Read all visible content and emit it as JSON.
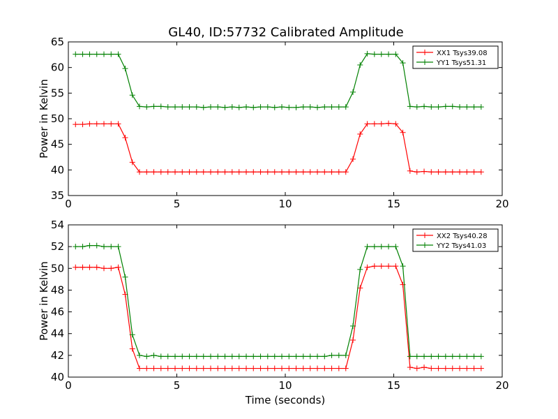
{
  "title": "GL40, ID:57732 Calibrated Amplitude",
  "colors": {
    "xx": "#ff0000",
    "yy": "#008000",
    "axis": "#000000",
    "background": "#ffffff"
  },
  "chart_data": [
    {
      "type": "line",
      "title": "GL40, ID:57732 Calibrated Amplitude",
      "xlabel": "",
      "ylabel": "Power in Kelvin",
      "xlim": [
        0,
        20
      ],
      "ylim": [
        35,
        65
      ],
      "xticks": [
        0,
        5,
        10,
        15,
        20
      ],
      "yticks": [
        35,
        40,
        45,
        50,
        55,
        60,
        65
      ],
      "grid": false,
      "legend": "top-right",
      "marker": "+",
      "x": [
        0.33,
        0.66,
        0.98,
        1.31,
        1.64,
        1.97,
        2.3,
        2.62,
        2.95,
        3.28,
        3.61,
        3.94,
        4.27,
        4.59,
        4.92,
        5.25,
        5.58,
        5.91,
        6.23,
        6.56,
        6.89,
        7.22,
        7.55,
        7.87,
        8.2,
        8.53,
        8.86,
        9.19,
        9.51,
        9.84,
        10.17,
        10.5,
        10.83,
        11.15,
        11.48,
        11.81,
        12.14,
        12.47,
        12.79,
        13.12,
        13.45,
        13.78,
        14.11,
        14.43,
        14.76,
        15.09,
        15.42,
        15.75,
        16.07,
        16.4,
        16.73,
        17.06,
        17.39,
        17.71,
        18.04,
        18.37,
        18.7,
        19.03
      ],
      "series": [
        {
          "name": "XX1 Tsys39.08",
          "color": "#ff0000",
          "values": [
            48.9,
            48.9,
            49.0,
            49.0,
            49.0,
            49.0,
            49.0,
            46.3,
            41.5,
            39.6,
            39.6,
            39.6,
            39.6,
            39.6,
            39.6,
            39.6,
            39.6,
            39.6,
            39.6,
            39.6,
            39.6,
            39.6,
            39.6,
            39.6,
            39.6,
            39.6,
            39.6,
            39.6,
            39.6,
            39.6,
            39.6,
            39.6,
            39.6,
            39.6,
            39.6,
            39.6,
            39.6,
            39.6,
            39.6,
            42.1,
            47.0,
            49.0,
            49.0,
            49.0,
            49.1,
            49.0,
            47.3,
            39.8,
            39.6,
            39.7,
            39.6,
            39.6,
            39.6,
            39.6,
            39.6,
            39.6,
            39.6,
            39.6
          ]
        },
        {
          "name": "YY1 Tsys51.31",
          "color": "#008000",
          "values": [
            62.6,
            62.6,
            62.6,
            62.6,
            62.6,
            62.6,
            62.6,
            59.8,
            54.6,
            52.4,
            52.3,
            52.4,
            52.4,
            52.3,
            52.3,
            52.3,
            52.3,
            52.3,
            52.2,
            52.3,
            52.3,
            52.2,
            52.3,
            52.2,
            52.3,
            52.2,
            52.3,
            52.3,
            52.2,
            52.3,
            52.2,
            52.2,
            52.3,
            52.3,
            52.2,
            52.3,
            52.3,
            52.3,
            52.3,
            55.2,
            60.5,
            62.7,
            62.6,
            62.6,
            62.6,
            62.6,
            60.9,
            52.4,
            52.3,
            52.4,
            52.3,
            52.3,
            52.4,
            52.4,
            52.3,
            52.3,
            52.3,
            52.3
          ]
        }
      ]
    },
    {
      "type": "line",
      "title": "",
      "xlabel": "Time (seconds)",
      "ylabel": "Power in Kelvin",
      "xlim": [
        0,
        20
      ],
      "ylim": [
        40,
        54
      ],
      "xticks": [
        0,
        5,
        10,
        15,
        20
      ],
      "yticks": [
        40,
        42,
        44,
        46,
        48,
        50,
        52,
        54
      ],
      "grid": false,
      "legend": "top-right",
      "marker": "+",
      "x": [
        0.33,
        0.66,
        0.98,
        1.31,
        1.64,
        1.97,
        2.3,
        2.62,
        2.95,
        3.28,
        3.61,
        3.94,
        4.27,
        4.59,
        4.92,
        5.25,
        5.58,
        5.91,
        6.23,
        6.56,
        6.89,
        7.22,
        7.55,
        7.87,
        8.2,
        8.53,
        8.86,
        9.19,
        9.51,
        9.84,
        10.17,
        10.5,
        10.83,
        11.15,
        11.48,
        11.81,
        12.14,
        12.47,
        12.79,
        13.12,
        13.45,
        13.78,
        14.11,
        14.43,
        14.76,
        15.09,
        15.42,
        15.75,
        16.07,
        16.4,
        16.73,
        17.06,
        17.39,
        17.71,
        18.04,
        18.37,
        18.7,
        19.03
      ],
      "series": [
        {
          "name": "XX2 Tsys40.28",
          "color": "#ff0000",
          "values": [
            50.1,
            50.1,
            50.1,
            50.1,
            50.0,
            50.0,
            50.1,
            47.6,
            42.6,
            40.8,
            40.8,
            40.8,
            40.8,
            40.8,
            40.8,
            40.8,
            40.8,
            40.8,
            40.8,
            40.8,
            40.8,
            40.8,
            40.8,
            40.8,
            40.8,
            40.8,
            40.8,
            40.8,
            40.8,
            40.8,
            40.8,
            40.8,
            40.8,
            40.8,
            40.8,
            40.8,
            40.8,
            40.8,
            40.8,
            43.4,
            48.2,
            50.1,
            50.2,
            50.2,
            50.2,
            50.2,
            48.5,
            40.9,
            40.8,
            40.9,
            40.8,
            40.8,
            40.8,
            40.8,
            40.8,
            40.8,
            40.8,
            40.8
          ]
        },
        {
          "name": "YY2 Tsys41.03",
          "color": "#008000",
          "values": [
            52.0,
            52.0,
            52.1,
            52.1,
            52.0,
            52.0,
            52.0,
            49.2,
            43.9,
            42.0,
            41.9,
            42.0,
            41.9,
            41.9,
            41.9,
            41.9,
            41.9,
            41.9,
            41.9,
            41.9,
            41.9,
            41.9,
            41.9,
            41.9,
            41.9,
            41.9,
            41.9,
            41.9,
            41.9,
            41.9,
            41.9,
            41.9,
            41.9,
            41.9,
            41.9,
            41.9,
            42.0,
            42.0,
            42.0,
            44.7,
            49.9,
            52.0,
            52.0,
            52.0,
            52.0,
            52.0,
            50.2,
            41.9,
            41.9,
            41.9,
            41.9,
            41.9,
            41.9,
            41.9,
            41.9,
            41.9,
            41.9,
            41.9
          ]
        }
      ]
    }
  ]
}
